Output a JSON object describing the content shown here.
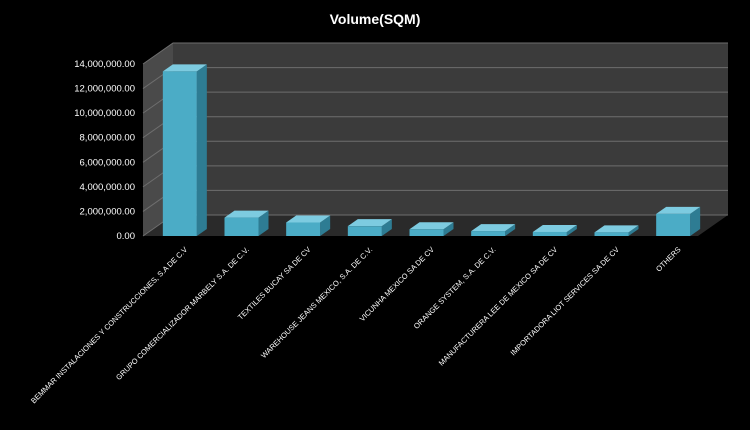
{
  "chart_data": {
    "type": "bar",
    "title": "Volume(SQM)",
    "xlabel": "",
    "ylabel": "",
    "ylim": [
      0,
      14000000
    ],
    "yticks": [
      "0.00",
      "2,000,000.00",
      "4,000,000.00",
      "6,000,000.00",
      "8,000,000.00",
      "10,000,000.00",
      "12,000,000.00",
      "14,000,000.00"
    ],
    "categories": [
      "BEMMAR INSTALACIONES Y CONSTRUCCIONES,  S.A DE C.V",
      "GRUPO COMERCIALIZADOR MARBELY S.A. DE C.V.",
      "TEXTILES BUCAY SA DE CV",
      "WAREHOUSE JEANS MEXICO, S.A. DE C.V.",
      "VICUNHA MEXICO SA DE CV",
      "ORANGE SYSTEM,  S.A. DE C.V.",
      "MANUFACTURERA LEE DE MEXICO SA DE CV",
      "IMPORTADORA LIOT SERVICES  SA DE CV",
      "OTHERS"
    ],
    "values": [
      13400000,
      1500000,
      1100000,
      800000,
      550000,
      400000,
      330000,
      300000,
      1800000
    ],
    "grid": true,
    "legend": "none",
    "colors": {
      "background": "#000000",
      "plot_back": "#3b3b3b",
      "plot_floor": "#2a2a2a",
      "plot_side": "#4a4a4a",
      "gridline": "#6e6e6e",
      "bar_front": "#4bacc6",
      "bar_top": "#7dcbe0",
      "bar_side": "#2e7c93",
      "text": "#ffffff"
    }
  }
}
